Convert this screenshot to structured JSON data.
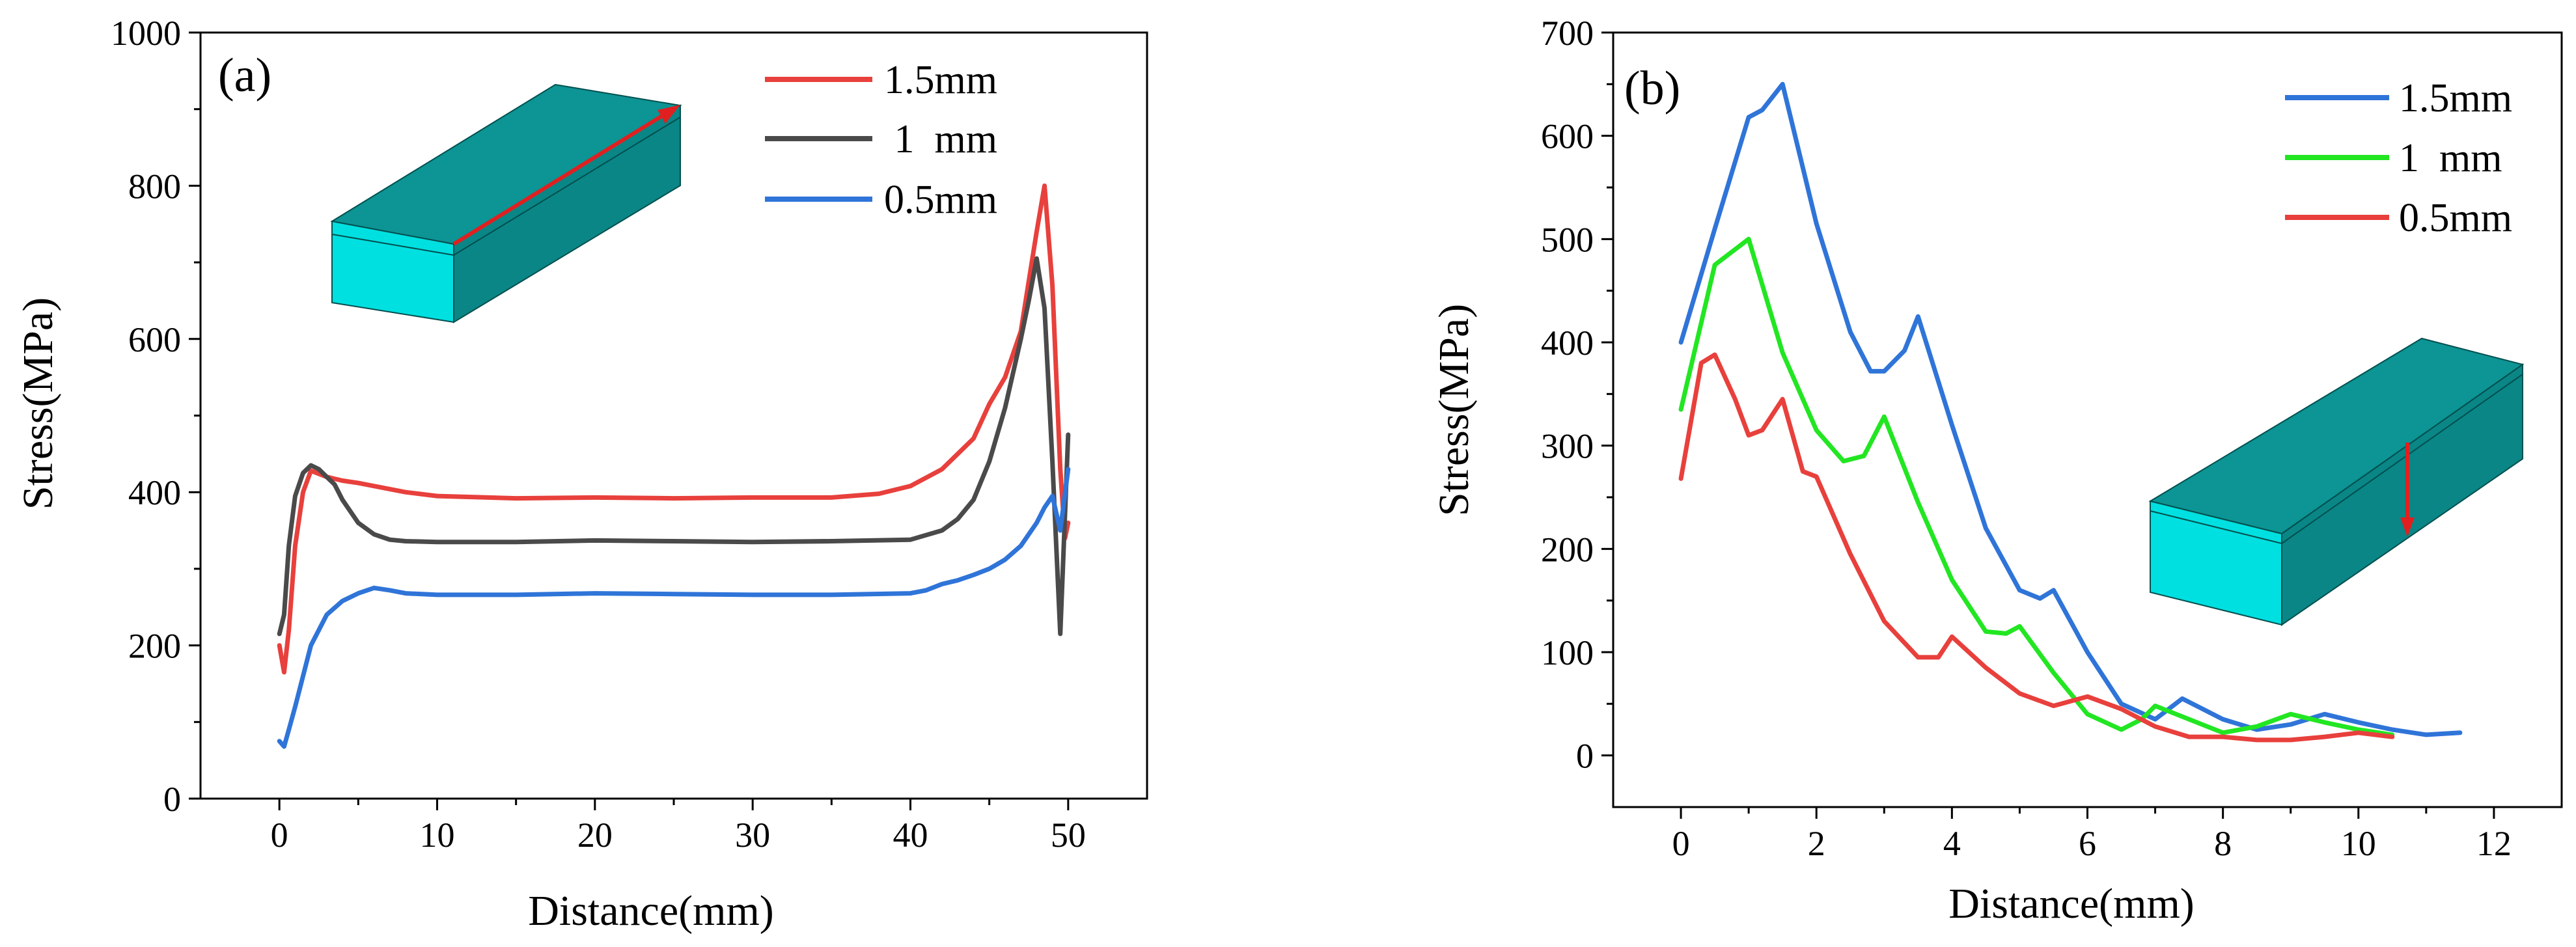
{
  "chart_data": [
    {
      "type": "line",
      "panel_label": "(a)",
      "xlabel": "Distance(mm)",
      "ylabel": "Stress(MPa)",
      "xlim": [
        -5,
        55
      ],
      "ylim": [
        0,
        1000
      ],
      "xticks": [
        0,
        10,
        20,
        30,
        40,
        50
      ],
      "yticks": [
        0,
        200,
        400,
        600,
        800,
        1000
      ],
      "xtick_labels": [
        "0",
        "10",
        "20",
        "30",
        "40",
        "50"
      ],
      "ytick_labels": [
        "0",
        "200",
        "400",
        "600",
        "800",
        "1000"
      ],
      "legend_position": "top-right",
      "inset": "cuboid with a red arrow along the top face",
      "series": [
        {
          "name": "1.5mm",
          "color": "#e8403c",
          "x": [
            0,
            0.3,
            0.6,
            1,
            1.5,
            2,
            3,
            4,
            5,
            6,
            8,
            10,
            15,
            20,
            25,
            30,
            35,
            38,
            40,
            42,
            44,
            45,
            46,
            47,
            48,
            48.5,
            49,
            49.5,
            49.8,
            50
          ],
          "y": [
            200,
            165,
            220,
            330,
            400,
            428,
            420,
            415,
            412,
            408,
            400,
            395,
            392,
            393,
            392,
            393,
            393,
            398,
            408,
            430,
            470,
            515,
            550,
            610,
            740,
            800,
            670,
            430,
            340,
            360
          ]
        },
        {
          "name": " 1  mm",
          "color": "#4a4a4a",
          "x": [
            0,
            0.3,
            0.6,
            1,
            1.5,
            2,
            2.5,
            3,
            3.5,
            4,
            5,
            6,
            7,
            8,
            10,
            15,
            20,
            25,
            30,
            35,
            40,
            42,
            43,
            44,
            45,
            46,
            47,
            47.5,
            48,
            48.5,
            49,
            49.5,
            50
          ],
          "y": [
            215,
            240,
            330,
            395,
            425,
            435,
            430,
            420,
            410,
            390,
            360,
            345,
            338,
            336,
            335,
            335,
            337,
            336,
            335,
            336,
            338,
            350,
            365,
            390,
            440,
            510,
            600,
            650,
            705,
            640,
            440,
            215,
            475
          ]
        },
        {
          "name": "0.5mm",
          "color": "#2f74d8",
          "x": [
            0,
            0.3,
            0.6,
            1,
            1.5,
            2,
            3,
            4,
            5,
            6,
            7,
            8,
            10,
            15,
            20,
            25,
            30,
            35,
            40,
            41,
            42,
            43,
            44,
            45,
            46,
            47,
            48,
            48.5,
            49,
            49.5,
            50
          ],
          "y": [
            75,
            68,
            90,
            120,
            160,
            200,
            240,
            258,
            268,
            275,
            272,
            268,
            266,
            266,
            268,
            267,
            266,
            266,
            268,
            272,
            280,
            285,
            292,
            300,
            312,
            330,
            360,
            380,
            395,
            350,
            430
          ]
        }
      ]
    },
    {
      "type": "line",
      "panel_label": "(b)",
      "xlabel": "Distance(mm)",
      "ylabel": "Stress(MPa)",
      "xlim": [
        -1,
        13
      ],
      "ylim": [
        -50,
        700
      ],
      "xticks": [
        0,
        2,
        4,
        6,
        8,
        10,
        12
      ],
      "yticks": [
        0,
        100,
        200,
        300,
        400,
        500,
        600,
        700
      ],
      "xtick_labels": [
        "0",
        "2",
        "4",
        "6",
        "8",
        "10",
        "12"
      ],
      "ytick_labels": [
        "0",
        "100",
        "200",
        "300",
        "400",
        "500",
        "600",
        "700"
      ],
      "legend_position": "top-right",
      "inset": "cuboid with a red arrow pointing down through the thickness",
      "series": [
        {
          "name": "1.5mm",
          "color": "#2f74d8",
          "x": [
            0,
            0.5,
            1,
            1.2,
            1.5,
            2,
            2.5,
            2.8,
            3,
            3.3,
            3.5,
            4,
            4.5,
            5,
            5.3,
            5.5,
            6,
            6.5,
            7,
            7.2,
            7.4,
            8,
            8.5,
            9,
            9.5,
            10,
            10.5,
            11,
            11.5
          ],
          "y": [
            400,
            510,
            618,
            625,
            650,
            515,
            410,
            372,
            372,
            392,
            425,
            320,
            220,
            160,
            152,
            160,
            100,
            50,
            35,
            45,
            55,
            35,
            25,
            30,
            40,
            32,
            25,
            20,
            22
          ]
        },
        {
          "name": "1  mm",
          "color": "#22e622",
          "x": [
            0,
            0.5,
            1,
            1.5,
            2,
            2.4,
            2.7,
            3,
            3.5,
            4,
            4.5,
            4.8,
            5,
            5.5,
            6,
            6.5,
            6.8,
            7,
            7.5,
            8,
            8.5,
            9,
            9.5,
            10,
            10.5
          ],
          "y": [
            335,
            475,
            500,
            390,
            315,
            285,
            290,
            328,
            245,
            170,
            120,
            118,
            125,
            80,
            40,
            25,
            35,
            48,
            35,
            22,
            28,
            40,
            32,
            25,
            20
          ]
        },
        {
          "name": "0.5mm",
          "color": "#e8403c",
          "x": [
            0,
            0.3,
            0.5,
            0.8,
            1,
            1.2,
            1.5,
            1.8,
            2,
            2.5,
            3,
            3.5,
            3.8,
            4,
            4.5,
            5,
            5.5,
            6,
            6.5,
            7,
            7.5,
            8,
            8.5,
            9,
            9.5,
            10,
            10.5
          ],
          "y": [
            268,
            380,
            388,
            345,
            310,
            315,
            345,
            275,
            270,
            195,
            130,
            95,
            95,
            115,
            85,
            60,
            48,
            57,
            45,
            28,
            18,
            18,
            15,
            15,
            18,
            22,
            18
          ]
        }
      ]
    }
  ]
}
